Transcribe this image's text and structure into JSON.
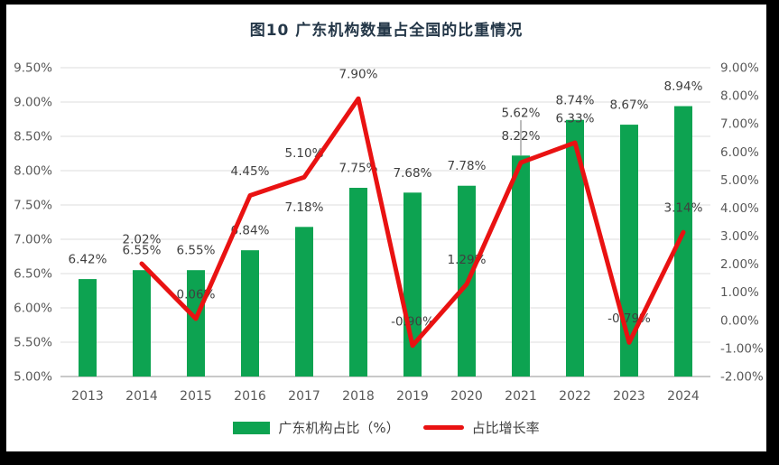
{
  "header": {
    "title": "图10  广东机构数量占全国的比重情况"
  },
  "colors": {
    "bar_green": "#0da351",
    "line_red": "#e91212",
    "grid_line": "#dcdcdc",
    "axis_line": "#c9c9c9",
    "tick_text": "#595959",
    "data_label_text": "#3f3f3f",
    "leader_line": "#a6a6a6",
    "title_text": "#243748",
    "panel_bg": "#ffffff",
    "frame_bg": "#000000"
  },
  "chart_data": {
    "type": "bar",
    "subtype": "combo-bar-line",
    "title": "图10  广东机构数量占全国的比重情况",
    "categories": [
      "2013",
      "2014",
      "2015",
      "2016",
      "2017",
      "2018",
      "2019",
      "2020",
      "2021",
      "2022",
      "2023",
      "2024"
    ],
    "series": [
      {
        "name": "广东机构占比（%）",
        "type": "bar",
        "axis": "left",
        "color": "#0da351",
        "values": [
          6.42,
          6.55,
          6.55,
          6.84,
          7.18,
          7.75,
          7.68,
          7.78,
          8.22,
          8.74,
          8.67,
          8.94
        ]
      },
      {
        "name": "占比增长率",
        "type": "line",
        "axis": "right",
        "color": "#e91212",
        "values": [
          null,
          2.02,
          0.06,
          4.45,
          5.1,
          7.9,
          -0.9,
          1.29,
          5.62,
          6.33,
          -0.79,
          3.14
        ]
      }
    ],
    "left_axis": {
      "min": 5.0,
      "max": 9.5,
      "step": 0.5,
      "tick_labels": [
        "9.50%",
        "9.00%",
        "8.50%",
        "8.00%",
        "7.50%",
        "7.00%",
        "6.50%",
        "6.00%",
        "5.50%",
        "5.00%"
      ]
    },
    "right_axis": {
      "min": -2.0,
      "max": 9.0,
      "step": 1.0,
      "tick_labels": [
        "9.00%",
        "8.00%",
        "7.00%",
        "6.00%",
        "5.00%",
        "4.00%",
        "3.00%",
        "2.00%",
        "1.00%",
        "0.00%",
        "-1.00%",
        "-2.00%"
      ]
    },
    "grid": true,
    "legend_position": "bottom",
    "data_labels": true
  },
  "legend": {
    "items": [
      {
        "label": "广东机构占比（%）",
        "color": "#0da351",
        "marker": "rect"
      },
      {
        "label": "占比增长率",
        "color": "#e91212",
        "marker": "line"
      }
    ]
  }
}
